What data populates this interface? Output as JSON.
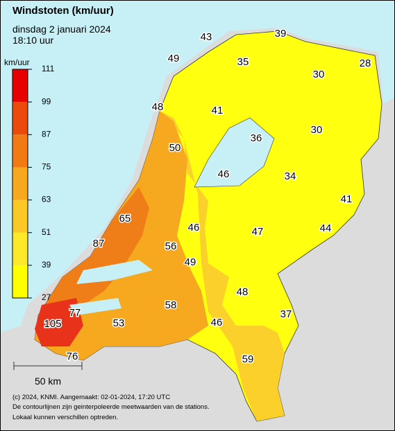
{
  "header": {
    "title": "Windstoten (km/uur)",
    "subtitle": "dinsdag 2 januari 2024",
    "time": "18:10 uur"
  },
  "legend": {
    "unit": "km/uur",
    "ticks": [
      111,
      99,
      87,
      75,
      63,
      51,
      39,
      27
    ],
    "colors": [
      "#e60000",
      "#ec4a0a",
      "#f27a14",
      "#f7a81e",
      "#fbc826",
      "#fde82a",
      "#ffff00"
    ]
  },
  "stations": [
    43,
    39,
    49,
    35,
    30,
    28,
    48,
    41,
    30,
    36,
    50,
    46,
    34,
    41,
    65,
    46,
    47,
    44,
    87,
    56,
    49,
    48,
    58,
    37,
    77,
    53,
    46,
    105,
    76,
    59
  ],
  "scale": {
    "label": "50 km"
  },
  "footer": [
    "(c) 2024, KNMI. Aangemaakt: 02-01-2024, 17:20 UTC",
    "De contourlijnen zijn geinterpoleerde meetwaarden van de stations.",
    "Lokaal kunnen verschillen optreden."
  ]
}
